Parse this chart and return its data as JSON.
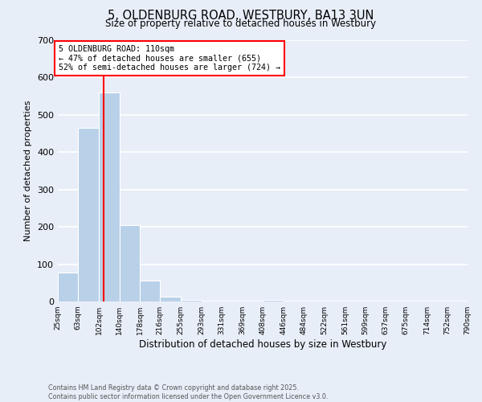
{
  "title": "5, OLDENBURG ROAD, WESTBURY, BA13 3UN",
  "subtitle": "Size of property relative to detached houses in Westbury",
  "xlabel": "Distribution of detached houses by size in Westbury",
  "ylabel": "Number of detached properties",
  "bar_edges": [
    25,
    63,
    102,
    140,
    178,
    216,
    255,
    293,
    331,
    369,
    408,
    446,
    484,
    522,
    561,
    599,
    637,
    675,
    714,
    752,
    790
  ],
  "bar_heights": [
    78,
    465,
    560,
    205,
    55,
    13,
    5,
    0,
    0,
    0,
    5,
    0,
    0,
    0,
    0,
    0,
    0,
    0,
    0,
    0
  ],
  "bar_color": "#b8d0e8",
  "background_color": "#e8eef8",
  "grid_color": "white",
  "vline_x": 110,
  "vline_color": "red",
  "annotation_text": "5 OLDENBURG ROAD: 110sqm\n← 47% of detached houses are smaller (655)\n52% of semi-detached houses are larger (724) →",
  "annotation_box_color": "white",
  "annotation_box_edge": "red",
  "ylim": [
    0,
    700
  ],
  "yticks": [
    0,
    100,
    200,
    300,
    400,
    500,
    600,
    700
  ],
  "tick_labels": [
    "25sqm",
    "63sqm",
    "102sqm",
    "140sqm",
    "178sqm",
    "216sqm",
    "255sqm",
    "293sqm",
    "331sqm",
    "369sqm",
    "408sqm",
    "446sqm",
    "484sqm",
    "522sqm",
    "561sqm",
    "599sqm",
    "637sqm",
    "675sqm",
    "714sqm",
    "752sqm",
    "790sqm"
  ],
  "footer_line1": "Contains HM Land Registry data © Crown copyright and database right 2025.",
  "footer_line2": "Contains public sector information licensed under the Open Government Licence v3.0."
}
